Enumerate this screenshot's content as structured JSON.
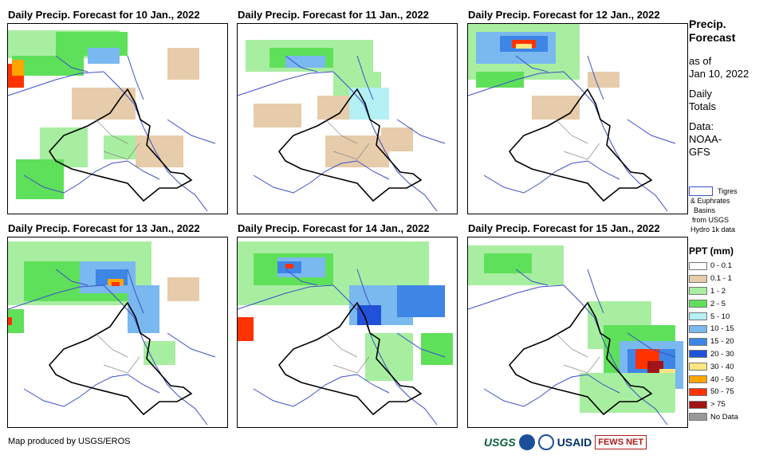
{
  "panels": [
    {
      "title": "Daily Precip. Forecast for 10 Jan., 2022"
    },
    {
      "title": "Daily Precip. Forecast for 11 Jan., 2022"
    },
    {
      "title": "Daily Precip. Forecast for 12 Jan., 2022"
    },
    {
      "title": "Daily Precip. Forecast for 13 Jan., 2022"
    },
    {
      "title": "Daily Precip. Forecast for 14 Jan., 2022"
    },
    {
      "title": "Daily Precip. Forecast for 15 Jan., 2022"
    }
  ],
  "sidebar": {
    "title_line1": "Precip.",
    "title_line2": "Forecast",
    "asof_line1": "as of",
    "asof_line2": "Jan 10, 2022",
    "totals_line1": "Daily",
    "totals_line2": "Totals",
    "data_line1": "Data:",
    "data_line2": "NOAA-",
    "data_line3": "GFS"
  },
  "basin_legend": {
    "line1": "Tigres",
    "line2": "& Euphrates",
    "line3": "Basins",
    "line4": "from USGS",
    "line5": "Hydro 1k data",
    "color": "#3b4fc8"
  },
  "legend": {
    "title": "PPT (mm)",
    "items": [
      {
        "label": "0 - 0.1",
        "color": "#ffffff"
      },
      {
        "label": "0.1 - 1",
        "color": "#e6ccaa"
      },
      {
        "label": "1 - 2",
        "color": "#a8eea0"
      },
      {
        "label": "2 - 5",
        "color": "#5fe05a"
      },
      {
        "label": "5 - 10",
        "color": "#b4f0f4"
      },
      {
        "label": "10 - 15",
        "color": "#7ab8f0"
      },
      {
        "label": "15 - 20",
        "color": "#3d86e6"
      },
      {
        "label": "20 - 30",
        "color": "#1f52d9"
      },
      {
        "label": "30 - 40",
        "color": "#ffe680"
      },
      {
        "label": "40 - 50",
        "color": "#ffa500"
      },
      {
        "label": "50 - 75",
        "color": "#ff3300"
      },
      {
        "label": "> 75",
        "color": "#a01515"
      },
      {
        "label": "No Data",
        "color": "#999999"
      }
    ]
  },
  "credit": "Map produced by USGS/EROS",
  "logos": {
    "usgs": "USGS",
    "usaid": "USAID",
    "fews": "FEWS NET"
  }
}
